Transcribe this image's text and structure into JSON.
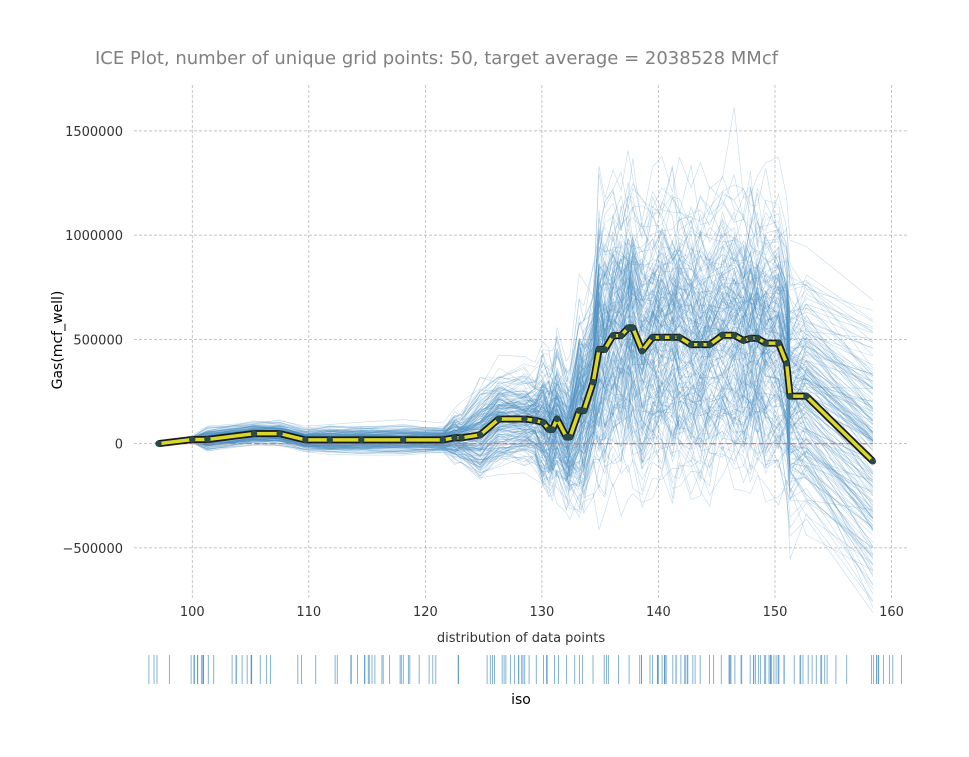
{
  "chart_data": {
    "type": "line",
    "title": "ICE Plot, number of unique grid points: 50, target average = 2038528 MMcf",
    "xlabel": "iso",
    "ylabel": "Gas(mcf_well)",
    "distribution_label": "distribution of data points",
    "xlim": [
      95,
      161.5
    ],
    "ylim": [
      -750000,
      1720000
    ],
    "x_ticks": [
      100,
      110,
      120,
      130,
      140,
      150,
      160
    ],
    "x_tick_labels": [
      "100",
      "110",
      "120",
      "130",
      "140",
      "150",
      "160"
    ],
    "y_ticks": [
      -500000,
      0,
      500000,
      1000000,
      1500000
    ],
    "y_tick_labels": [
      "−500000",
      "0",
      "500000",
      "1000000",
      "1500000"
    ],
    "grid": true,
    "reference_line": {
      "y": 0,
      "color": "#e8735a",
      "style": "dashed"
    },
    "pdp": {
      "x": [
        97.1,
        100.0,
        101.3,
        105.3,
        107.5,
        109.7,
        111.8,
        114.5,
        118.1,
        121.5,
        122.5,
        123.1,
        124.7,
        126.3,
        128.5,
        129.4,
        130.1,
        130.6,
        130.9,
        131.3,
        132.1,
        132.4,
        133.2,
        133.6,
        134.4,
        134.9,
        135.4,
        136.1,
        136.8,
        137.4,
        137.8,
        138.6,
        139.5,
        140.3,
        141.2,
        141.8,
        142.8,
        143.6,
        144.4,
        145.5,
        146.5,
        147.3,
        147.9,
        148.5,
        149.2,
        150.3,
        151.0,
        151.3,
        152.7,
        158.4
      ],
      "y": [
        0,
        20000,
        20000,
        48000,
        48000,
        18000,
        18000,
        18000,
        18000,
        18000,
        28000,
        28000,
        42000,
        118000,
        118000,
        112000,
        102000,
        68000,
        68000,
        118000,
        32000,
        32000,
        158000,
        158000,
        295000,
        452000,
        452000,
        518000,
        518000,
        555000,
        555000,
        445000,
        510000,
        510000,
        510000,
        510000,
        475000,
        475000,
        475000,
        520000,
        520000,
        495000,
        505000,
        505000,
        482000,
        482000,
        385000,
        228000,
        228000,
        -85000
      ]
    },
    "pdp_line_color": "#1a1a1a",
    "pdp_highlight_color": "#d8d82a",
    "pdp_marker_color": "#2a4a4a",
    "ice_line_color": "#4a90c2",
    "ice_line_count": 200,
    "rug_color": "#4a90c2",
    "rug_sample_count": 160,
    "rug_range": [
      95.5,
      160.5
    ]
  }
}
